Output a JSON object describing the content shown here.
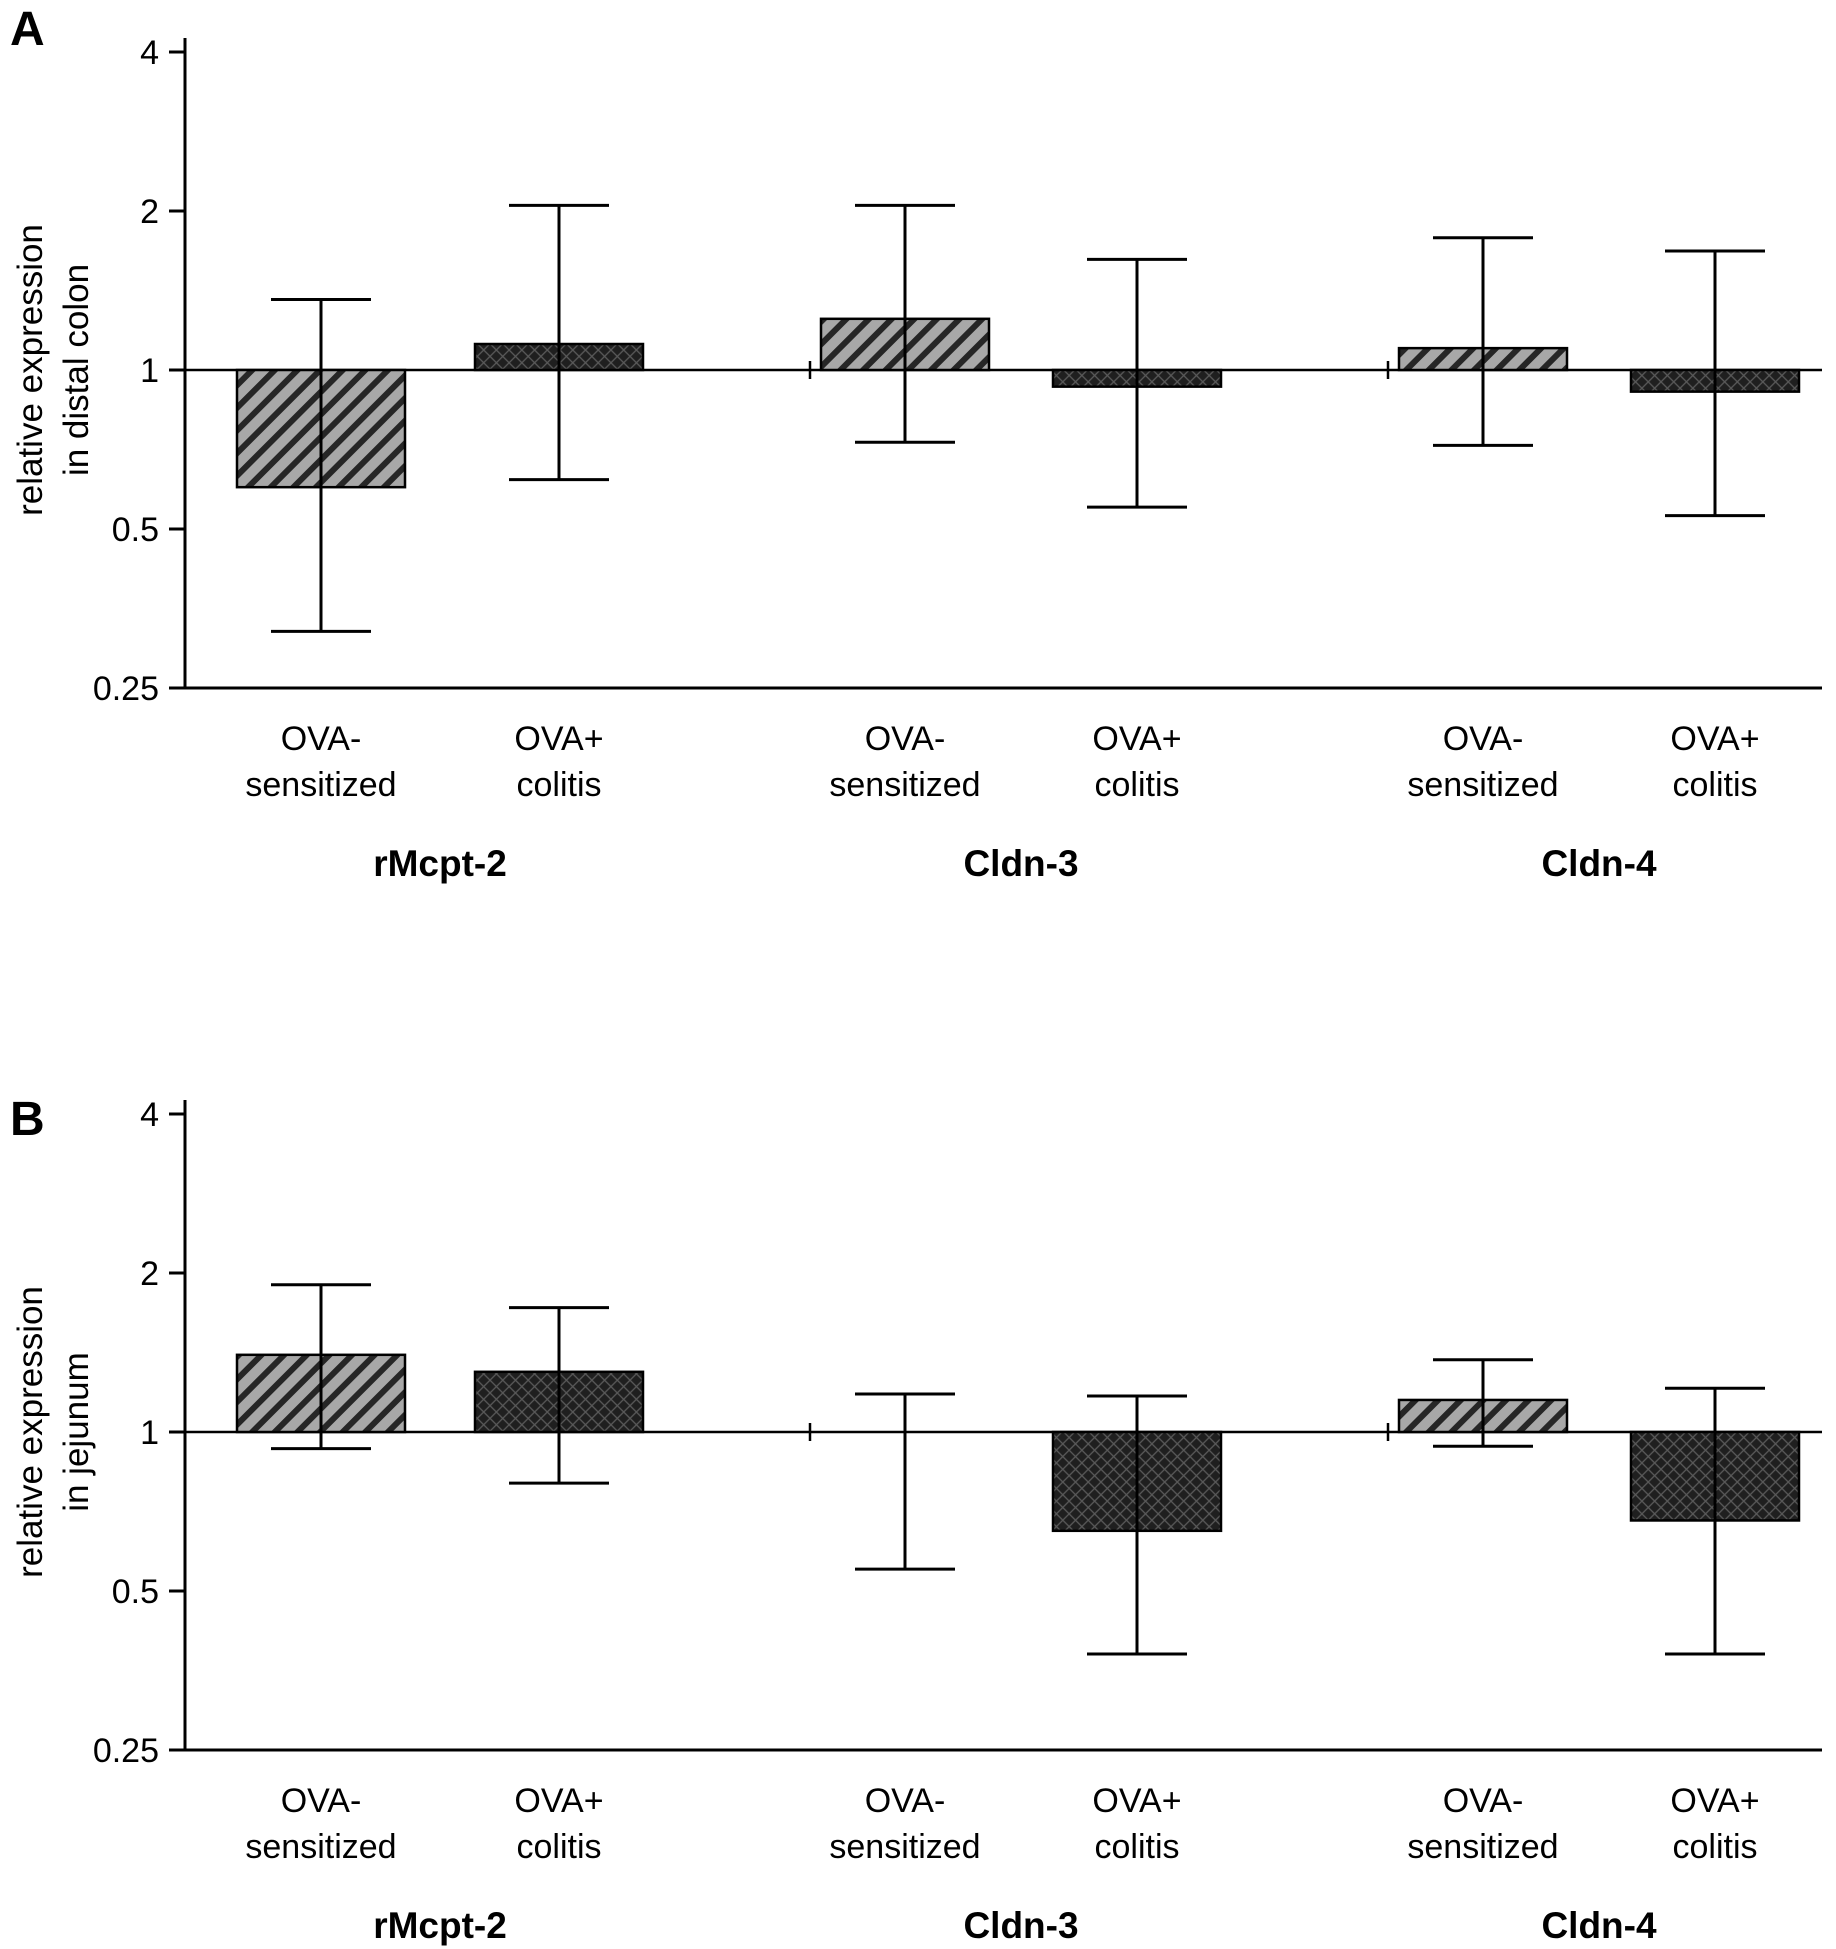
{
  "figure": {
    "panel_a_letter": "A",
    "panel_b_letter": "B"
  },
  "colors": {
    "background": "#ffffff",
    "axis": "#000000",
    "text": "#000000",
    "hatch_fill": "#a8a8a8",
    "hatch_stripe": "#262626",
    "dark_fill": "#1f1f1f",
    "dark_stripe": "#5a5a5a"
  },
  "chart_data": [
    {
      "type": "bar",
      "panel": "A",
      "ylabel_lines": [
        "relative expression",
        "in distal colon"
      ],
      "yscale": "log2",
      "ylim": [
        0.25,
        4
      ],
      "yticks": [
        "4",
        "2",
        "1",
        "0.5",
        "0.25"
      ],
      "baseline": 1,
      "grid": false,
      "legend_position": "none",
      "groups": [
        "rMcpt-2",
        "Cldn-3",
        "Cldn-4"
      ],
      "bar_styles": {
        "hatch": "light-gray-diagonal-hatch (OVA- sensitized)",
        "dark": "dark-crosshatch (OVA+ colitis)"
      },
      "bars": [
        {
          "group": "rMcpt-2",
          "label_line1": "OVA-",
          "label_line2": "sensitized",
          "style": "hatch",
          "value": 0.6,
          "err_low": 0.32,
          "err_high": 1.36
        },
        {
          "group": "rMcpt-2",
          "label_line1": "OVA+",
          "label_line2": "colitis",
          "style": "dark",
          "value": 1.12,
          "err_low": 0.62,
          "err_high": 2.05
        },
        {
          "group": "Cldn-3",
          "label_line1": "OVA-",
          "label_line2": "sensitized",
          "style": "hatch",
          "value": 1.25,
          "err_low": 0.73,
          "err_high": 2.05
        },
        {
          "group": "Cldn-3",
          "label_line1": "OVA+",
          "label_line2": "colitis",
          "style": "dark",
          "value": 0.93,
          "err_low": 0.55,
          "err_high": 1.62
        },
        {
          "group": "Cldn-4",
          "label_line1": "OVA-",
          "label_line2": "sensitized",
          "style": "hatch",
          "value": 1.1,
          "err_low": 0.72,
          "err_high": 1.78
        },
        {
          "group": "Cldn-4",
          "label_line1": "OVA+",
          "label_line2": "colitis",
          "style": "dark",
          "value": 0.91,
          "err_low": 0.53,
          "err_high": 1.68
        }
      ]
    },
    {
      "type": "bar",
      "panel": "B",
      "ylabel_lines": [
        "relative expression",
        "in jejunum"
      ],
      "yscale": "log2",
      "ylim": [
        0.25,
        4
      ],
      "yticks": [
        "4",
        "2",
        "1",
        "0.5",
        "0.25"
      ],
      "baseline": 1,
      "grid": false,
      "legend_position": "none",
      "groups": [
        "rMcpt-2",
        "Cldn-3",
        "Cldn-4"
      ],
      "bar_styles": {
        "hatch": "light-gray-diagonal-hatch (OVA- sensitized)",
        "dark": "dark-crosshatch (OVA+ colitis)"
      },
      "bars": [
        {
          "group": "rMcpt-2",
          "label_line1": "OVA-",
          "label_line2": "sensitized",
          "style": "hatch",
          "value": 1.4,
          "err_low": 0.93,
          "err_high": 1.9
        },
        {
          "group": "rMcpt-2",
          "label_line1": "OVA+",
          "label_line2": "colitis",
          "style": "dark",
          "value": 1.3,
          "err_low": 0.8,
          "err_high": 1.72
        },
        {
          "group": "Cldn-3",
          "label_line1": "OVA-",
          "label_line2": "sensitized",
          "style": "hatch",
          "value": 1.0,
          "err_low": 0.55,
          "err_high": 1.18
        },
        {
          "group": "Cldn-3",
          "label_line1": "OVA+",
          "label_line2": "colitis",
          "style": "dark",
          "value": 0.65,
          "err_low": 0.38,
          "err_high": 1.17
        },
        {
          "group": "Cldn-4",
          "label_line1": "OVA-",
          "label_line2": "sensitized",
          "style": "hatch",
          "value": 1.15,
          "err_low": 0.94,
          "err_high": 1.37
        },
        {
          "group": "Cldn-4",
          "label_line1": "OVA+",
          "label_line2": "colitis",
          "style": "dark",
          "value": 0.68,
          "err_low": 0.38,
          "err_high": 1.21
        }
      ]
    }
  ]
}
